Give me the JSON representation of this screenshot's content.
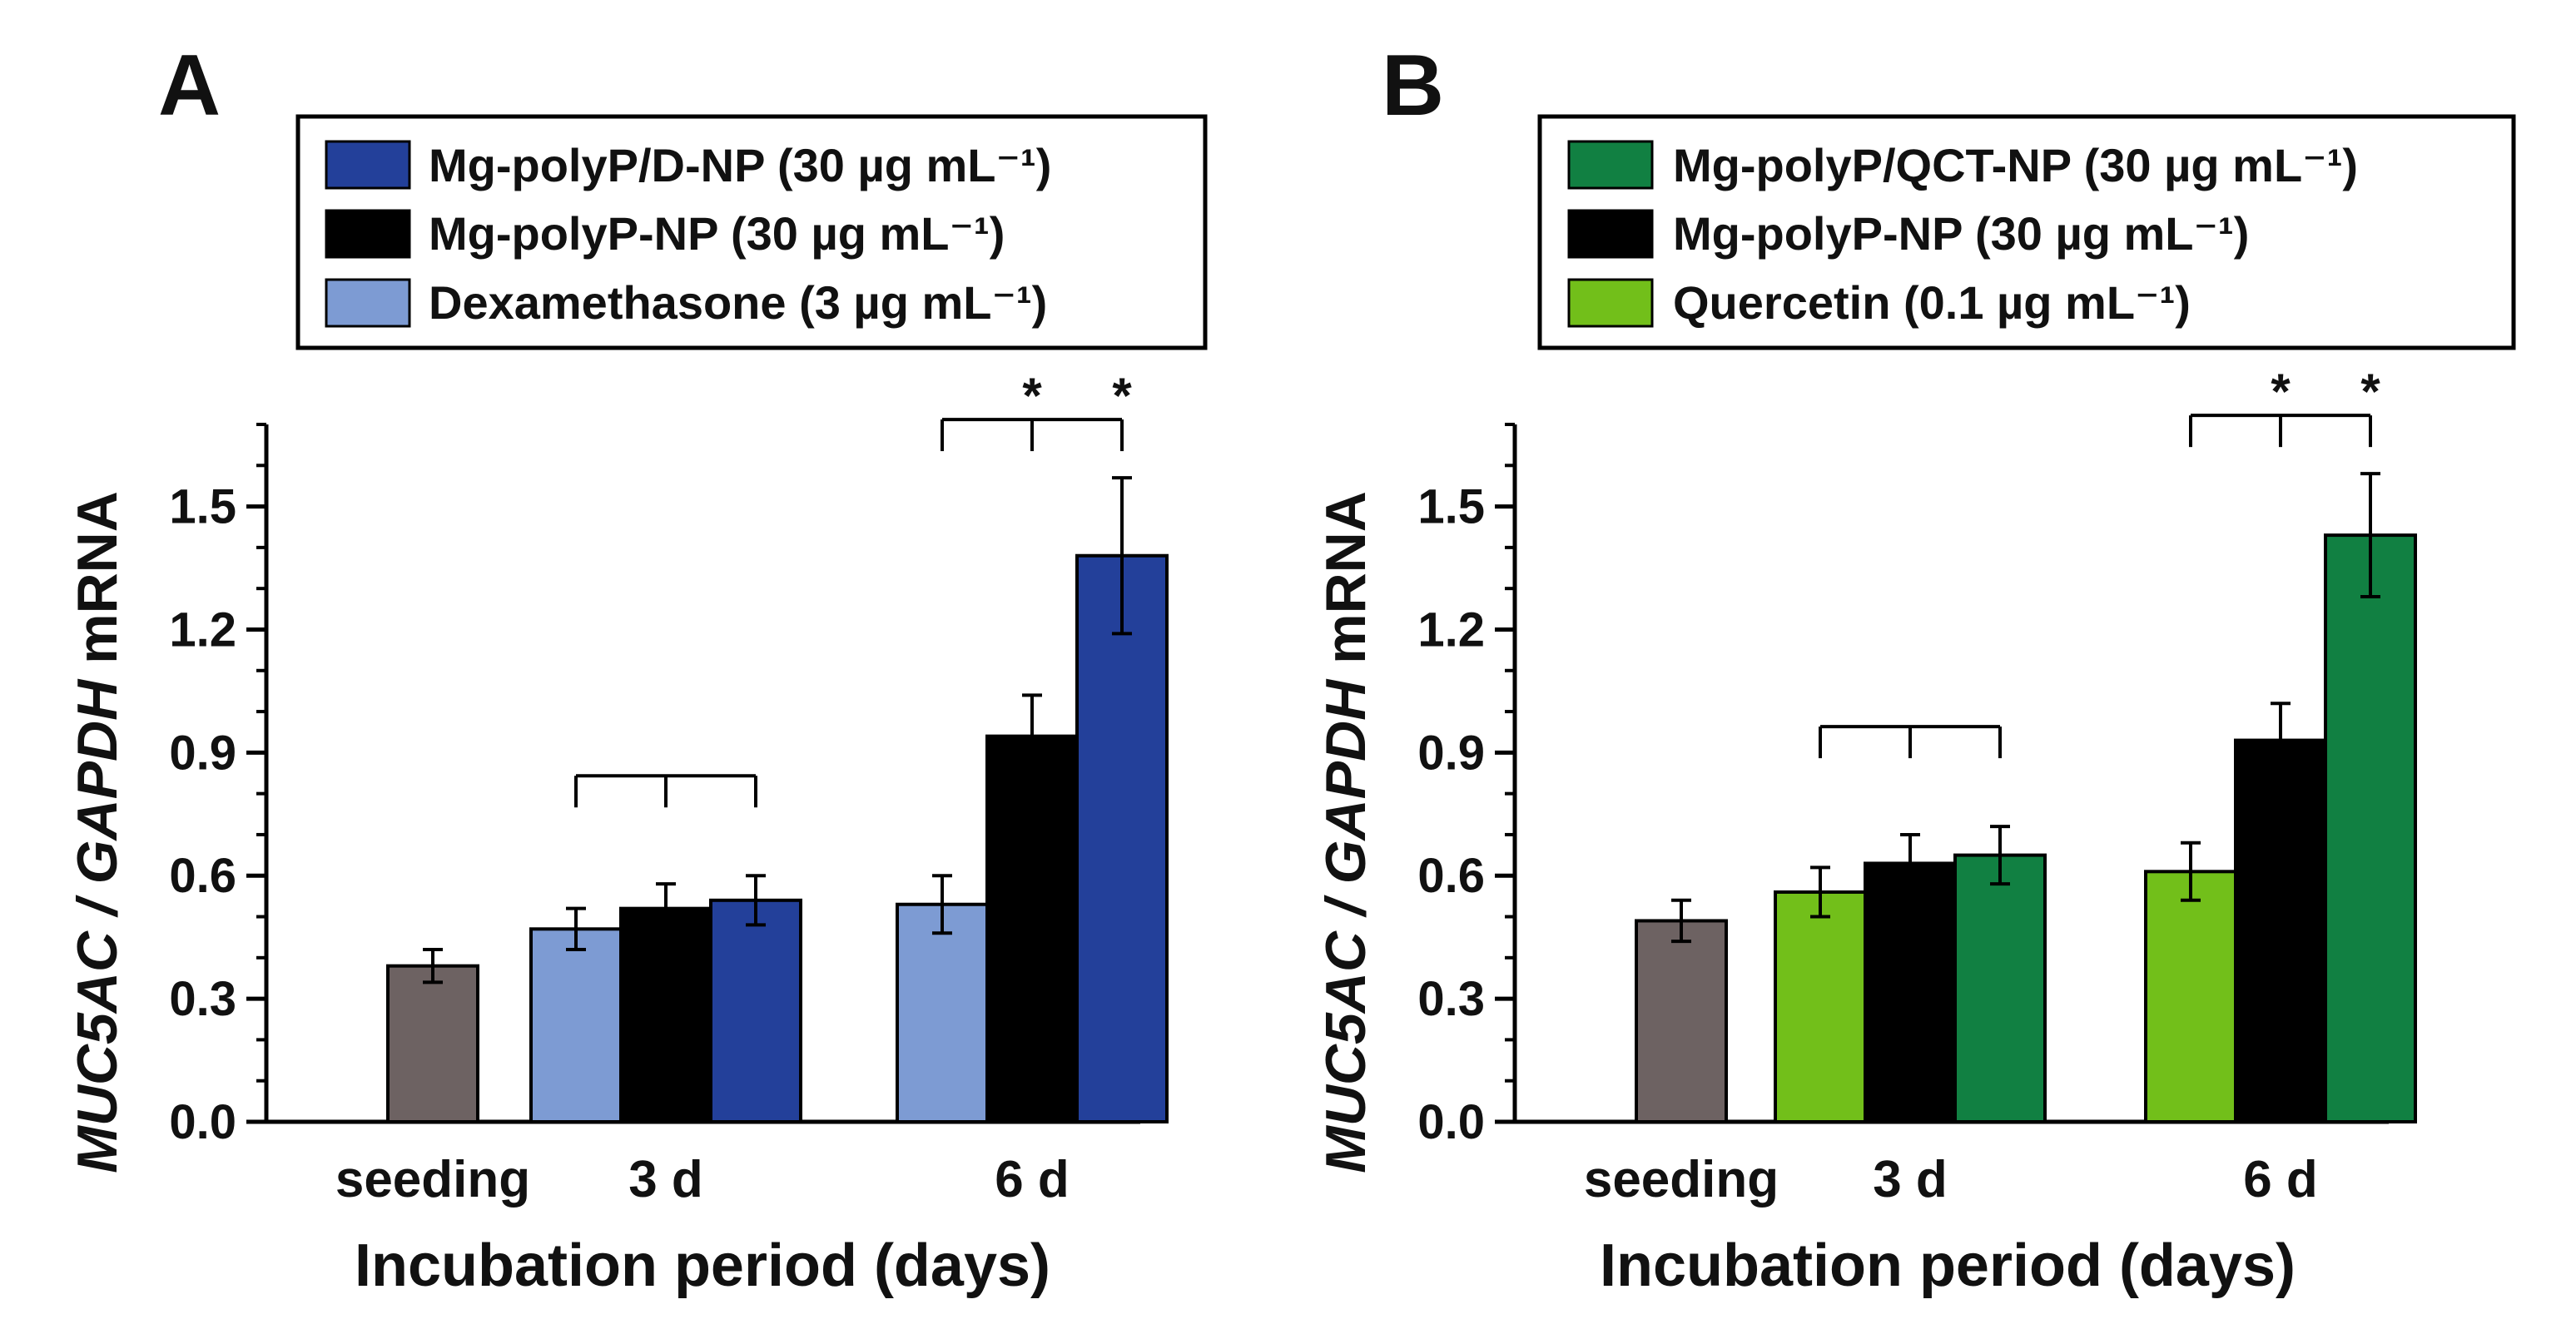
{
  "panels": [
    {
      "label": "A",
      "legend": [
        "Mg-polyP/D-NP (30 µg mL⁻¹)",
        "Mg-polyP-NP (30 µg   mL⁻¹)",
        "Dexamethasone (3 µg mL⁻¹)"
      ],
      "colors": [
        "#23409a",
        "#000000",
        "#7d9bd3"
      ],
      "control_color": "#6d6262",
      "chart_data": {
        "type": "bar",
        "title": "",
        "xlabel": "Incubation period (days)",
        "ylabel_italic": "MUC5AC / GAPDH",
        "ylabel_plain": " mRNA",
        "categories": [
          "seeding",
          "3 d",
          "6 d"
        ],
        "ylim": [
          0,
          1.7
        ],
        "yticks": [
          "0.0",
          "0.3",
          "0.6",
          "0.9",
          "1.2",
          "1.5"
        ],
        "control": {
          "value": 0.38,
          "error": 0.04
        },
        "series": [
          {
            "name": "Dexamethasone (3 µg mL⁻¹)",
            "values": [
              null,
              0.47,
              0.53
            ],
            "errors": [
              null,
              0.05,
              0.07
            ]
          },
          {
            "name": "Mg-polyP-NP (30 µg   mL⁻¹)",
            "values": [
              null,
              0.52,
              0.94
            ],
            "errors": [
              null,
              0.06,
              0.1
            ]
          },
          {
            "name": "Mg-polyP/D-NP (30 µg mL⁻¹)",
            "values": [
              null,
              0.54,
              1.38
            ],
            "errors": [
              null,
              0.06,
              0.19
            ]
          }
        ],
        "brackets": [
          {
            "category": "3 d",
            "stars": [
              "",
              ""
            ]
          },
          {
            "category": "6 d",
            "stars": [
              "*",
              "*"
            ]
          }
        ]
      }
    },
    {
      "label": "B",
      "legend": [
        "Mg-polyP/QCT-NP (30 µg mL⁻¹)",
        "Mg-polyP-NP (30 µg   mL⁻¹)",
        "Quercetin (0.1 µg mL⁻¹)"
      ],
      "colors": [
        "#118042",
        "#000000",
        "#72bf1a"
      ],
      "control_color": "#6d6262",
      "chart_data": {
        "type": "bar",
        "title": "",
        "xlabel": "Incubation period (days)",
        "ylabel_italic": "MUC5AC / GAPDH",
        "ylabel_plain": " mRNA",
        "categories": [
          "seeding",
          "3 d",
          "6 d"
        ],
        "ylim": [
          0,
          1.7
        ],
        "yticks": [
          "0.0",
          "0.3",
          "0.6",
          "0.9",
          "1.2",
          "1.5"
        ],
        "control": {
          "value": 0.49,
          "error": 0.05
        },
        "series": [
          {
            "name": "Quercetin (0.1 µg mL⁻¹)",
            "values": [
              null,
              0.56,
              0.61
            ],
            "errors": [
              null,
              0.06,
              0.07
            ]
          },
          {
            "name": "Mg-polyP-NP (30 µg   mL⁻¹)",
            "values": [
              null,
              0.63,
              0.93
            ],
            "errors": [
              null,
              0.07,
              0.09
            ]
          },
          {
            "name": "Mg-polyP/QCT-NP (30 µg mL⁻¹)",
            "values": [
              null,
              0.65,
              1.43
            ],
            "errors": [
              null,
              0.07,
              0.15
            ]
          }
        ],
        "brackets": [
          {
            "category": "3 d",
            "stars": [
              "",
              ""
            ]
          },
          {
            "category": "6 d",
            "stars": [
              "*",
              "*"
            ]
          }
        ]
      }
    }
  ]
}
